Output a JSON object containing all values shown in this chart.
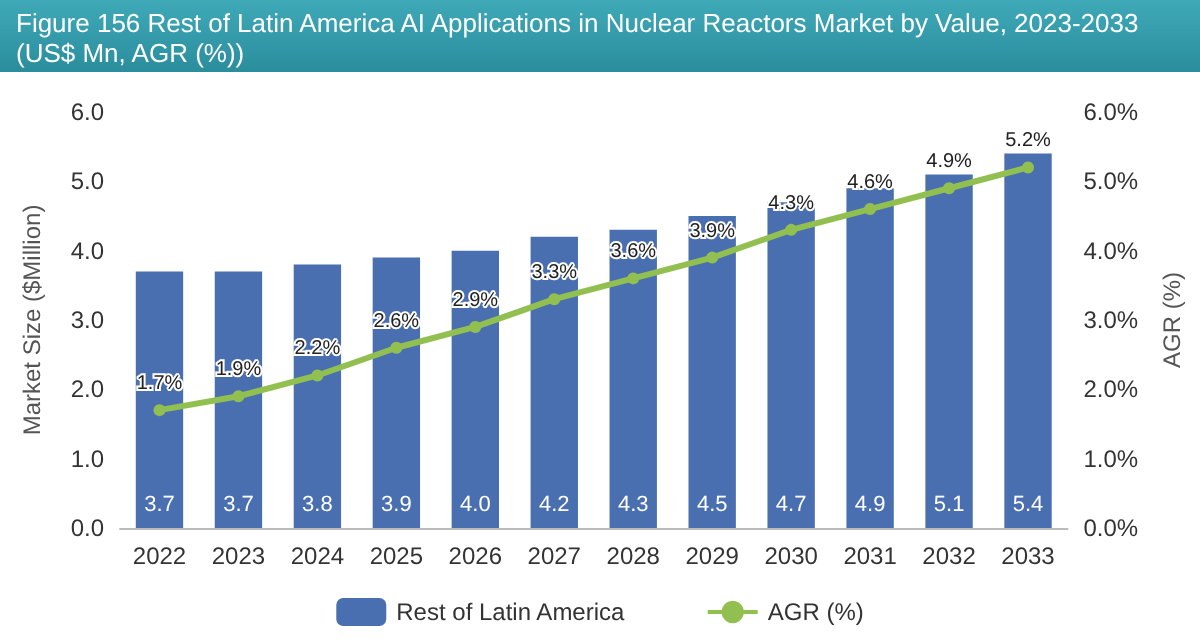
{
  "chart_data": {
    "type": "bar",
    "title": "Figure 156   Rest of Latin America AI Applications in Nuclear Reactors Market by Value, 2023-2033 (US$ Mn, AGR (%))",
    "categories": [
      "2022",
      "2023",
      "2024",
      "2025",
      "2026",
      "2027",
      "2028",
      "2029",
      "2030",
      "2031",
      "2032",
      "2033"
    ],
    "series": [
      {
        "name": "Rest of Latin America",
        "type": "bar",
        "color": "#4a6fb0",
        "values": [
          3.7,
          3.7,
          3.8,
          3.9,
          4.0,
          4.2,
          4.3,
          4.5,
          4.7,
          4.9,
          5.1,
          5.4
        ],
        "value_labels": [
          "3.7",
          "3.7",
          "3.8",
          "3.9",
          "4.0",
          "4.2",
          "4.3",
          "4.5",
          "4.7",
          "4.9",
          "5.1",
          "5.4"
        ]
      },
      {
        "name": "AGR (%)",
        "type": "line",
        "axis": "y2",
        "color": "#92c050",
        "marker": "circle",
        "values": [
          1.7,
          1.9,
          2.2,
          2.6,
          2.9,
          3.3,
          3.6,
          3.9,
          4.3,
          4.6,
          4.9,
          5.2
        ],
        "value_labels": [
          "1.7%",
          "1.9%",
          "2.2%",
          "2.6%",
          "2.9%",
          "3.3%",
          "3.6%",
          "3.9%",
          "4.3%",
          "4.6%",
          "4.9%",
          "5.2%"
        ]
      }
    ],
    "ylabel": "Market Size ($Million)",
    "y2label": "AGR (%)",
    "ylim": [
      0,
      6
    ],
    "yticks": [
      {
        "value": 0,
        "label": "0.0"
      },
      {
        "value": 1,
        "label": "1.0"
      },
      {
        "value": 2,
        "label": "2.0"
      },
      {
        "value": 3,
        "label": "3.0"
      },
      {
        "value": 4,
        "label": "4.0"
      },
      {
        "value": 5,
        "label": "5.0"
      },
      {
        "value": 6,
        "label": "6.0"
      }
    ],
    "y2lim": [
      0,
      6
    ],
    "y2ticks": [
      {
        "value": 0,
        "label": "0.0%"
      },
      {
        "value": 1,
        "label": "1.0%"
      },
      {
        "value": 2,
        "label": "2.0%"
      },
      {
        "value": 3,
        "label": "3.0%"
      },
      {
        "value": 4,
        "label": "4.0%"
      },
      {
        "value": 5,
        "label": "5.0%"
      },
      {
        "value": 6,
        "label": "6.0%"
      }
    ],
    "grid": false,
    "legend": "bottom"
  }
}
